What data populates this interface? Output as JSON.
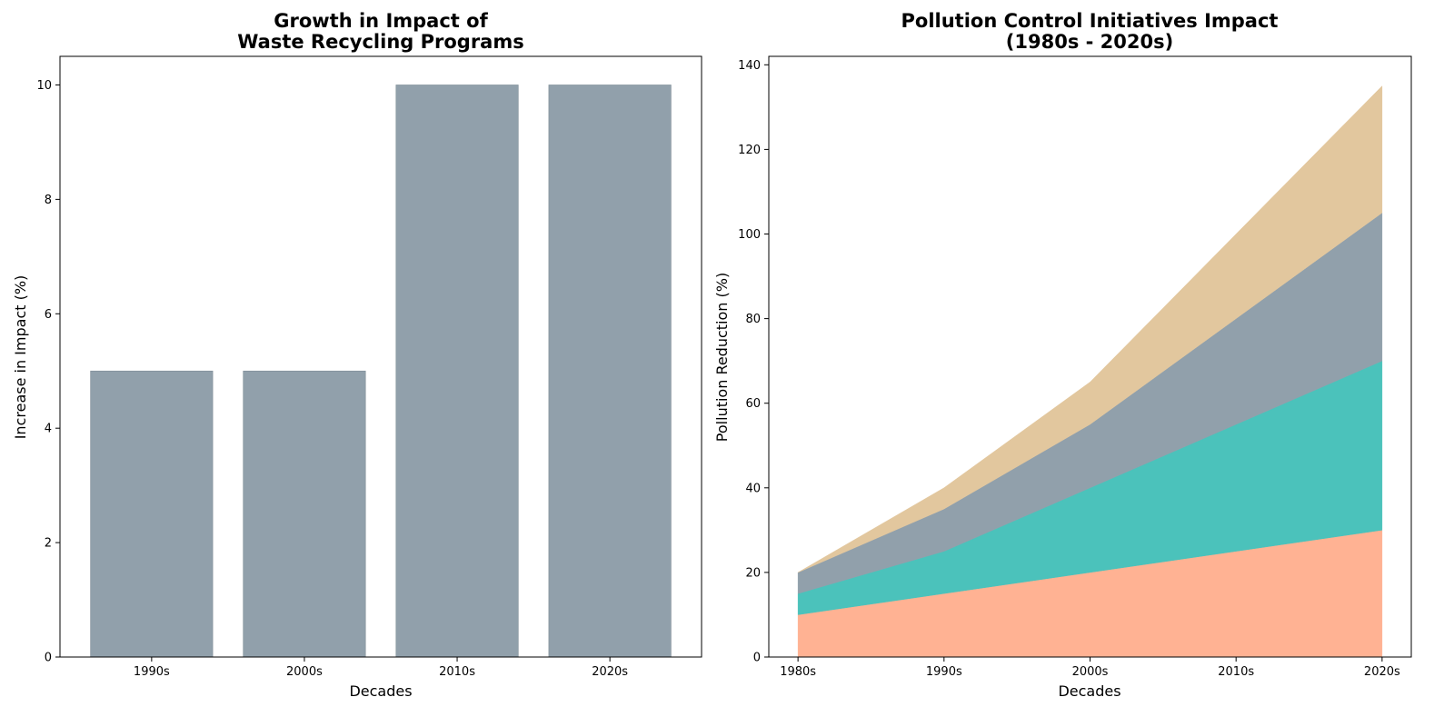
{
  "chart_data": [
    {
      "type": "bar",
      "title_lines": [
        "Growth in Impact of",
        "Waste Recycling Programs"
      ],
      "xlabel": "Decades",
      "ylabel": "Increase in Impact (%)",
      "categories": [
        "1990s",
        "2000s",
        "2010s",
        "2020s"
      ],
      "values": [
        5,
        5,
        10,
        10
      ],
      "ylim": [
        0,
        10.5
      ],
      "yticks": [
        0,
        2,
        4,
        6,
        8,
        10
      ],
      "color": "#91a0ab",
      "grid": false,
      "legend": "none"
    },
    {
      "type": "area",
      "stacked": true,
      "title_lines": [
        "Pollution Control Initiatives Impact",
        "(1980s - 2020s)"
      ],
      "xlabel": "Decades",
      "ylabel": "Pollution Reduction (%)",
      "categories": [
        "1980s",
        "1990s",
        "2000s",
        "2010s",
        "2020s"
      ],
      "series": [
        {
          "values": [
            10,
            15,
            20,
            25,
            30
          ],
          "color": "#ffb293"
        },
        {
          "values": [
            5,
            10,
            20,
            30,
            40
          ],
          "color": "#4bc2bb"
        },
        {
          "values": [
            5,
            10,
            15,
            25,
            35
          ],
          "color": "#91a0ab"
        },
        {
          "values": [
            0,
            5,
            10,
            20,
            30
          ],
          "color": "#e2c79e"
        }
      ],
      "ylim": [
        0,
        142
      ],
      "yticks": [
        0,
        20,
        40,
        60,
        80,
        100,
        120,
        140
      ],
      "grid": false,
      "legend": "none"
    }
  ]
}
